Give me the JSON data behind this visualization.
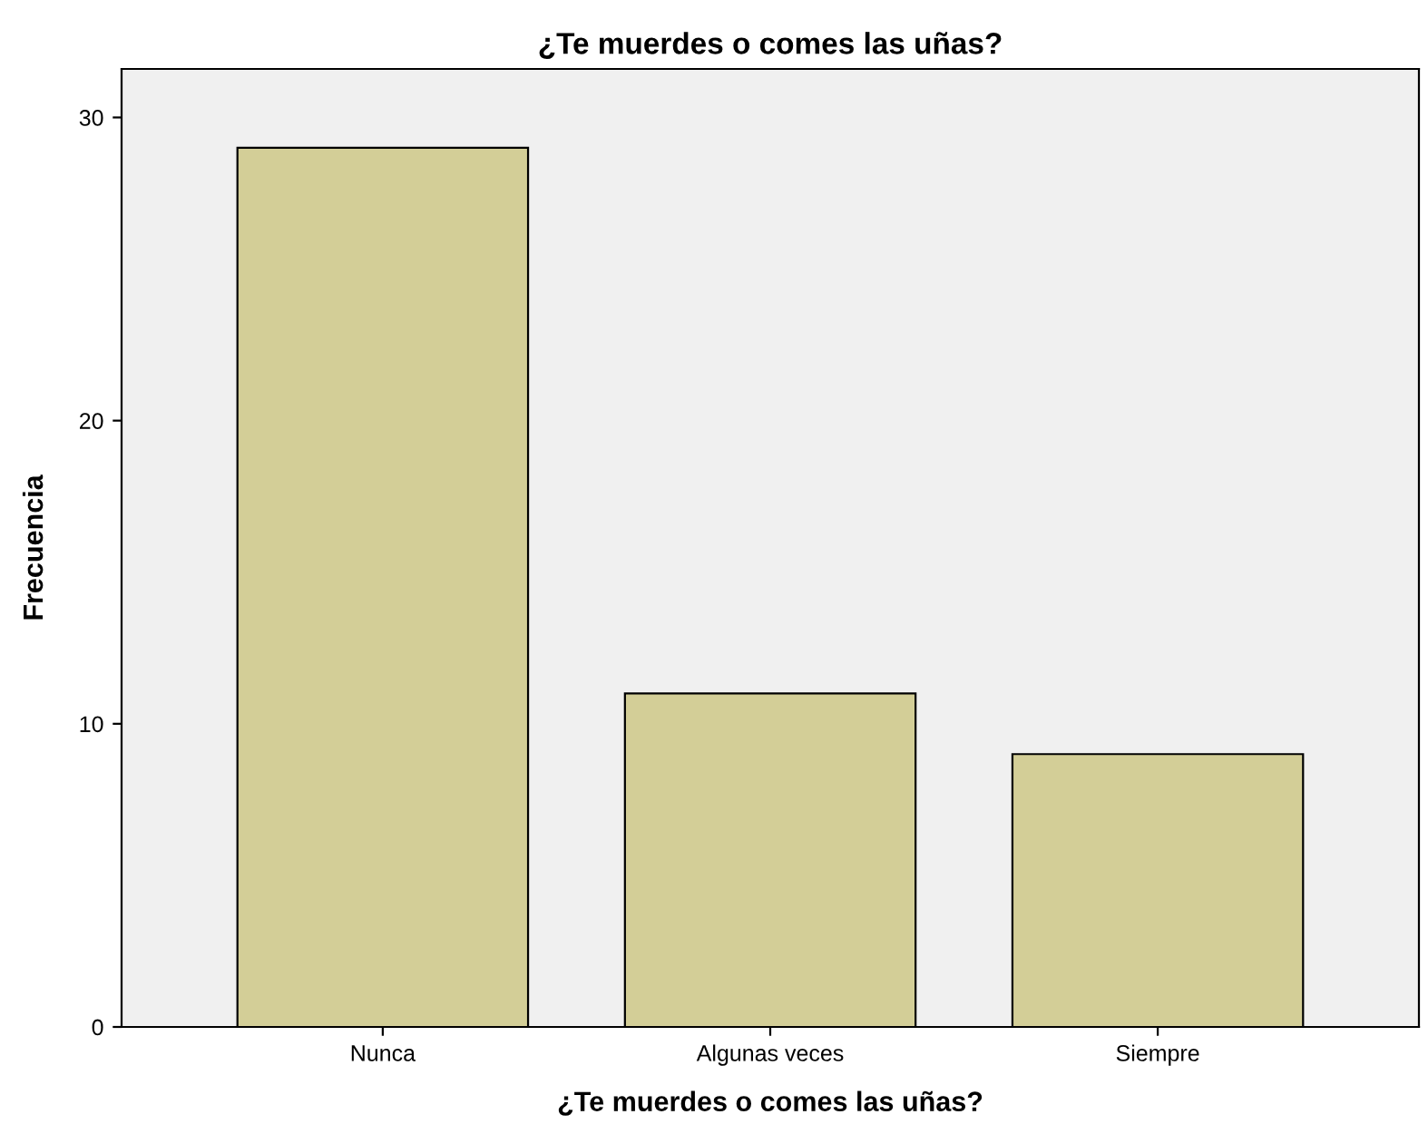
{
  "chart_data": {
    "type": "bar",
    "title": "¿Te muerdes o comes las uñas?",
    "xlabel": "¿Te muerdes o comes las uñas?",
    "ylabel": "Frecuencia",
    "categories": [
      "Nunca",
      "Algunas veces",
      "Siempre"
    ],
    "values": [
      29,
      11,
      9
    ],
    "color": "#d3ce97",
    "ylim": [
      0,
      31.6
    ],
    "yticks": [
      0,
      10,
      20,
      30
    ],
    "grid": false,
    "legend": false
  }
}
